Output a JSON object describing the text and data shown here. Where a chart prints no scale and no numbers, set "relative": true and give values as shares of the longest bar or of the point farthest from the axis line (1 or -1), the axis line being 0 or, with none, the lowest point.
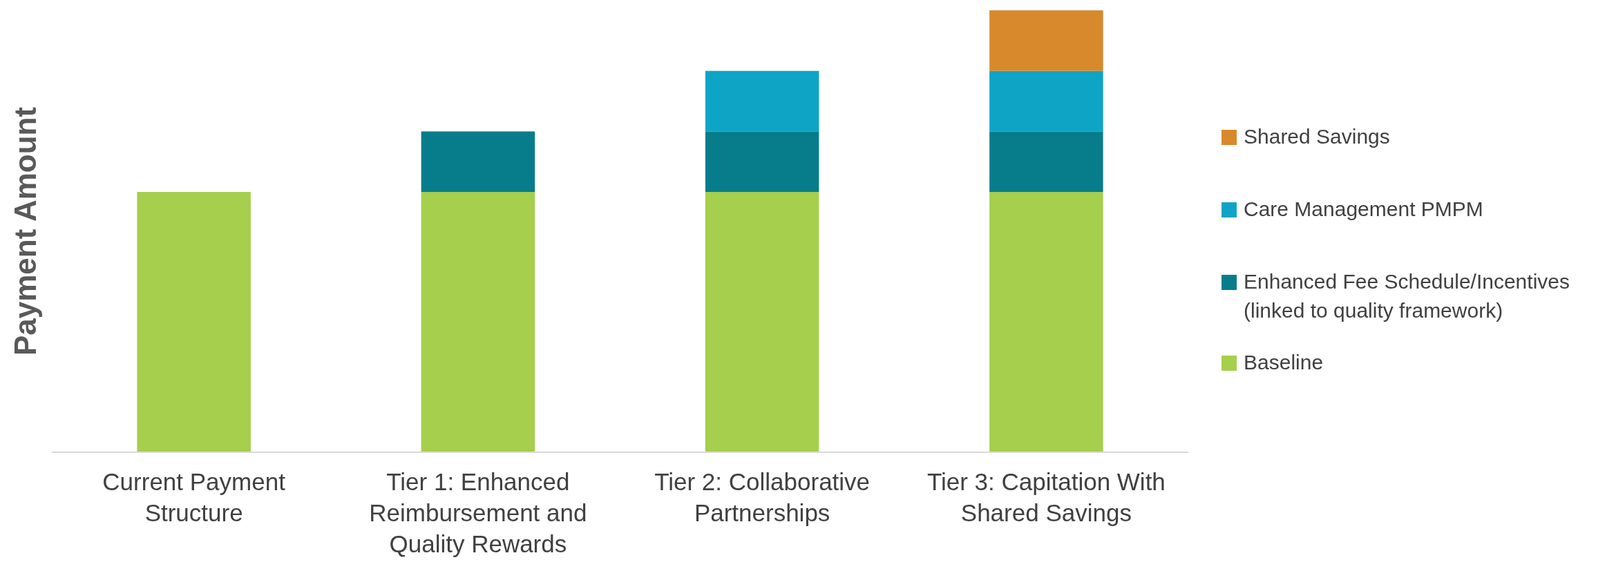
{
  "chart_data": {
    "type": "bar",
    "stacked": true,
    "relative": true,
    "ylabel": "Payment Amount",
    "legend": "right",
    "categories": [
      "Current Payment Structure",
      "Tier 1: Enhanced Reimbursement and Quality Rewards",
      "Tier 2: Collaborative Partnerships",
      "Tier 3: Capitation With Shared Savings"
    ],
    "series": [
      {
        "name": "Baseline",
        "color": "#a5cf4c",
        "values": [
          0.589,
          0.589,
          0.589,
          0.589
        ]
      },
      {
        "name": "Enhanced Fee Schedule/Incentives\n(linked to quality framework)",
        "color": "#077d8c",
        "values": [
          0,
          0.137,
          0.137,
          0.137
        ]
      },
      {
        "name": "Care Management PMPM",
        "color": "#0ea4c6",
        "values": [
          0,
          0,
          0.137,
          0.137
        ]
      },
      {
        "name": "Shared Savings",
        "color": "#d8892b",
        "values": [
          0,
          0,
          0,
          0.137
        ]
      }
    ]
  }
}
